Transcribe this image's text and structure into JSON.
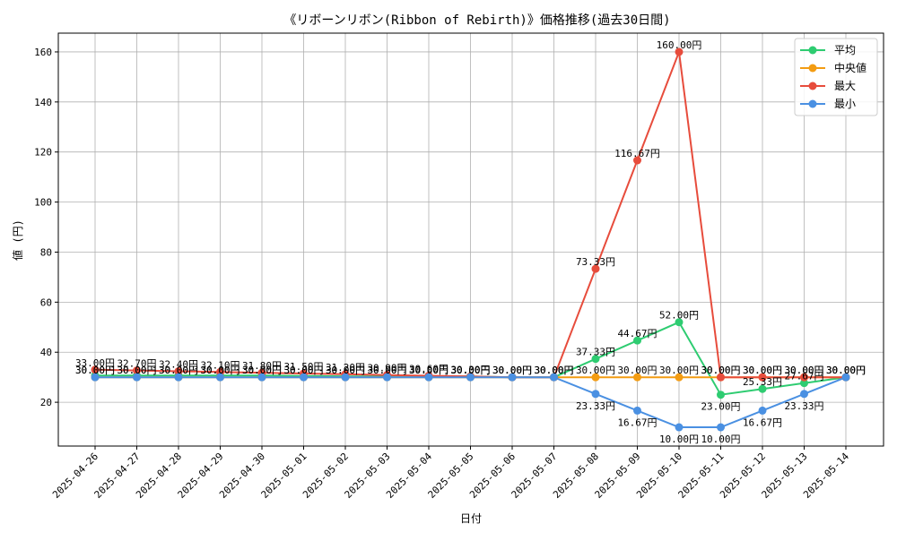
{
  "chart_data": {
    "type": "line",
    "title": "《リボーンリボン(Ribbon of Rebirth)》価格推移(過去30日間)",
    "xlabel": "日付",
    "ylabel": "値 (円)",
    "ylim": [
      2.5,
      167.5
    ],
    "yticks": [
      20,
      40,
      60,
      80,
      100,
      120,
      140,
      160
    ],
    "grid": true,
    "legend_position": "top-right",
    "categories": [
      "2025-04-26",
      "2025-04-27",
      "2025-04-28",
      "2025-04-29",
      "2025-04-30",
      "2025-05-01",
      "2025-05-02",
      "2025-05-03",
      "2025-05-04",
      "2025-05-05",
      "2025-05-06",
      "2025-05-07",
      "2025-05-08",
      "2025-05-09",
      "2025-05-10",
      "2025-05-11",
      "2025-05-12",
      "2025-05-13",
      "2025-05-14"
    ],
    "series": [
      {
        "name": "平均",
        "color": "#2ecc71",
        "values": [
          30.67,
          30.67,
          30.67,
          30.67,
          30.67,
          30.5,
          30.33,
          30.33,
          30.33,
          30.33,
          30.0,
          30.0,
          37.33,
          44.67,
          52.0,
          23.0,
          25.33,
          27.67,
          30.0
        ],
        "labels": [
          null,
          null,
          null,
          null,
          null,
          null,
          null,
          null,
          null,
          null,
          null,
          null,
          "37.33円",
          "44.67円",
          "52.00円",
          "23.00円",
          "25.33円",
          "27.67円",
          null
        ]
      },
      {
        "name": "中央値",
        "color": "#f39c12",
        "values": [
          30,
          30,
          30,
          30,
          30,
          30,
          30,
          30,
          30,
          30,
          30,
          30,
          30,
          30,
          30,
          30,
          30,
          30,
          30
        ],
        "labels": [
          "30.00円",
          "30.00円",
          "30.00円",
          "30.00円",
          "30.00円",
          "30.00円",
          "30.00円",
          "30.00円",
          "30.00円",
          "30.00円",
          "30.00円",
          "30.00円",
          "30.00円",
          "30.00円",
          "30.00円",
          "30.00円",
          "30.00円",
          "30.00円",
          "30.00円"
        ]
      },
      {
        "name": "最大",
        "color": "#e74c3c",
        "values": [
          33.0,
          32.7,
          32.4,
          32.1,
          31.8,
          31.5,
          31.2,
          30.9,
          30.6,
          30.3,
          30.0,
          30.0,
          73.33,
          116.67,
          160.0,
          30.0,
          30.0,
          30.0,
          30.0
        ],
        "labels": [
          "33.00円",
          "32.70円",
          "32.40円",
          "32.10円",
          "31.80円",
          "31.50円",
          "31.20円",
          "30.90円",
          "30.60円",
          "30.30円",
          "30.00円",
          "30.00円",
          "73.33円",
          "116.67円",
          "160.00円",
          "30.00円",
          "30.00円",
          "30.00円",
          "30.00円"
        ]
      },
      {
        "name": "最小",
        "color": "#4a90e2",
        "values": [
          30,
          30,
          30,
          30,
          30,
          30,
          30,
          30,
          30,
          30,
          30,
          30,
          23.33,
          16.67,
          10.0,
          10.0,
          16.67,
          23.33,
          30
        ],
        "labels": [
          "30.00円",
          "30.00円",
          "30.00円",
          "30.00円",
          "30.00円",
          "30.00円",
          "30.00円",
          "30.00円",
          "30.00円",
          "30.00円",
          "30.00円",
          "30.00円",
          "23.33円",
          "16.67円",
          "10.00円",
          "10.00円",
          "16.67円",
          "23.33円",
          "30.00円"
        ]
      }
    ]
  }
}
